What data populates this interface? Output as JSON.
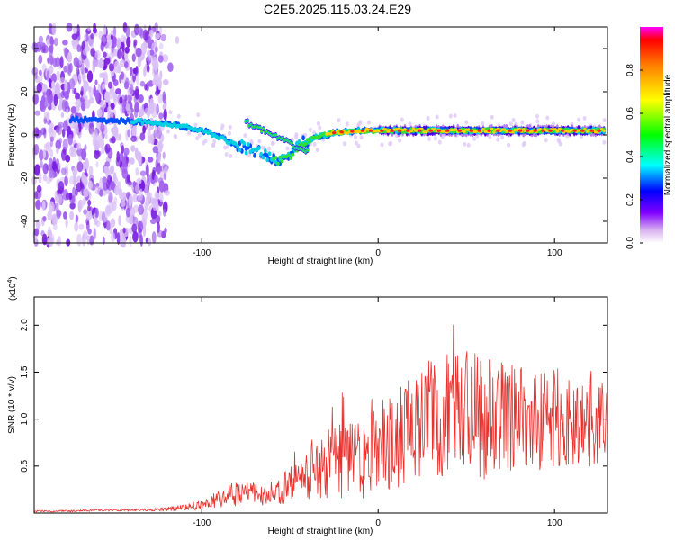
{
  "title": "C2E5.2025.115.03.24.E29",
  "chart_data": [
    {
      "type": "heatmap",
      "xlabel": "Height of straight line (km)",
      "ylabel": "Frequency (Hz)",
      "xlim": [
        -195,
        130
      ],
      "ylim": [
        -50,
        50
      ],
      "xticks": [
        -100,
        0,
        100
      ],
      "yticks": [
        -40,
        -20,
        0,
        20,
        40
      ],
      "colorbar": {
        "label": "Normalized spectral amplitude",
        "range": [
          0.0,
          1.0
        ],
        "ticks": [
          "0.0",
          "0.2",
          "0.4",
          "0.6",
          "0.8"
        ]
      },
      "ridge": {
        "x": [
          -165,
          -130,
          -110,
          -95,
          -85,
          -75,
          -65,
          -55,
          -45,
          -40,
          -35,
          -25,
          -10,
          0,
          50,
          100,
          130
        ],
        "frequency": [
          7,
          6,
          4,
          1,
          -3,
          -6,
          -9,
          -12,
          -5,
          -3,
          -1,
          1,
          2,
          2,
          2,
          2,
          2
        ]
      }
    },
    {
      "type": "line",
      "xlabel": "Height of straight line (km)",
      "ylabel": "SNR (10 * v/v)",
      "yscale_label": "(x10",
      "yscale_exp": "4",
      "xlim": [
        -195,
        130
      ],
      "ylim": [
        0,
        2.3
      ],
      "xticks": [
        -100,
        0,
        100
      ],
      "yticks": [
        "0.5",
        "1.0",
        "1.5",
        "2.0"
      ],
      "series": [
        {
          "color": "#e8322e",
          "x": [
            -195,
            -180,
            -160,
            -140,
            -120,
            -100,
            -90,
            -80,
            -70,
            -60,
            -50,
            -40,
            -30,
            -20,
            -10,
            0,
            10,
            20,
            30,
            40,
            50,
            60,
            70,
            80,
            90,
            100,
            110,
            120,
            130
          ],
          "y": [
            0.02,
            0.02,
            0.03,
            0.03,
            0.04,
            0.08,
            0.15,
            0.22,
            0.2,
            0.18,
            0.3,
            0.38,
            0.5,
            0.6,
            0.55,
            0.65,
            0.75,
            0.9,
            1.0,
            1.05,
            1.05,
            1.0,
            1.05,
            1.0,
            1.0,
            1.0,
            1.0,
            0.95,
            0.9
          ],
          "amplitude": [
            0.01,
            0.01,
            0.01,
            0.01,
            0.02,
            0.05,
            0.1,
            0.15,
            0.12,
            0.1,
            0.2,
            0.25,
            0.35,
            0.45,
            0.4,
            0.5,
            0.55,
            0.6,
            0.65,
            0.7,
            0.7,
            0.65,
            0.6,
            0.55,
            0.55,
            0.55,
            0.5,
            0.5,
            0.45
          ]
        }
      ]
    }
  ]
}
